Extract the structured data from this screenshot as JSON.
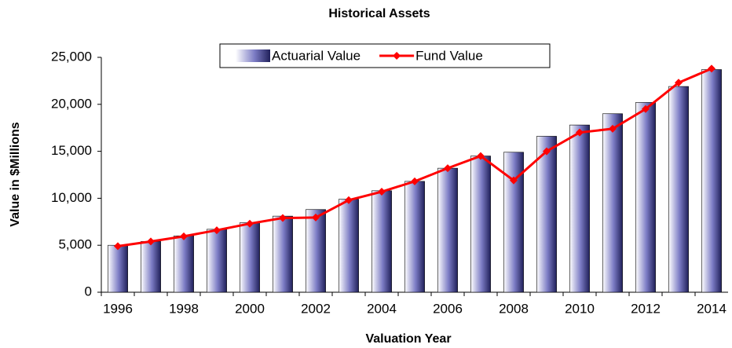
{
  "chart_data": {
    "type": "bar_line",
    "title": "Historical Assets",
    "x_label": "Valuation Year",
    "y_label": "Value in $Millions",
    "categories": [
      "1996",
      null,
      "1998",
      null,
      "2000",
      null,
      "2002",
      null,
      "2004",
      null,
      "2006",
      null,
      "2008",
      null,
      "2010",
      null,
      "2012",
      null,
      "2014"
    ],
    "series": [
      {
        "name": "Actuarial Value",
        "type": "bar",
        "color": "#7b7bc4",
        "values": [
          5000,
          5400,
          6000,
          6700,
          7400,
          8100,
          8800,
          9900,
          10800,
          11800,
          13200,
          14500,
          14900,
          16600,
          17800,
          19000,
          20200,
          21900,
          23700
        ]
      },
      {
        "name": "Fund Value",
        "type": "line",
        "color": "#ff0000",
        "values": [
          4900,
          5400,
          5950,
          6600,
          7300,
          7900,
          7950,
          9800,
          10700,
          11800,
          13200,
          14500,
          11900,
          15000,
          17000,
          17400,
          19500,
          22300,
          23800
        ]
      }
    ],
    "ylim": [
      0,
      25000
    ],
    "yticks": [
      0,
      {
        "value": 5000,
        "label": "5,000"
      },
      {
        "value": 10000,
        "label": "10,000"
      },
      {
        "value": 15000,
        "label": "15,000"
      },
      {
        "value": 20000,
        "label": "20,000"
      },
      {
        "value": 25000,
        "label": "25,000"
      }
    ],
    "grid": false,
    "legend": "top"
  }
}
